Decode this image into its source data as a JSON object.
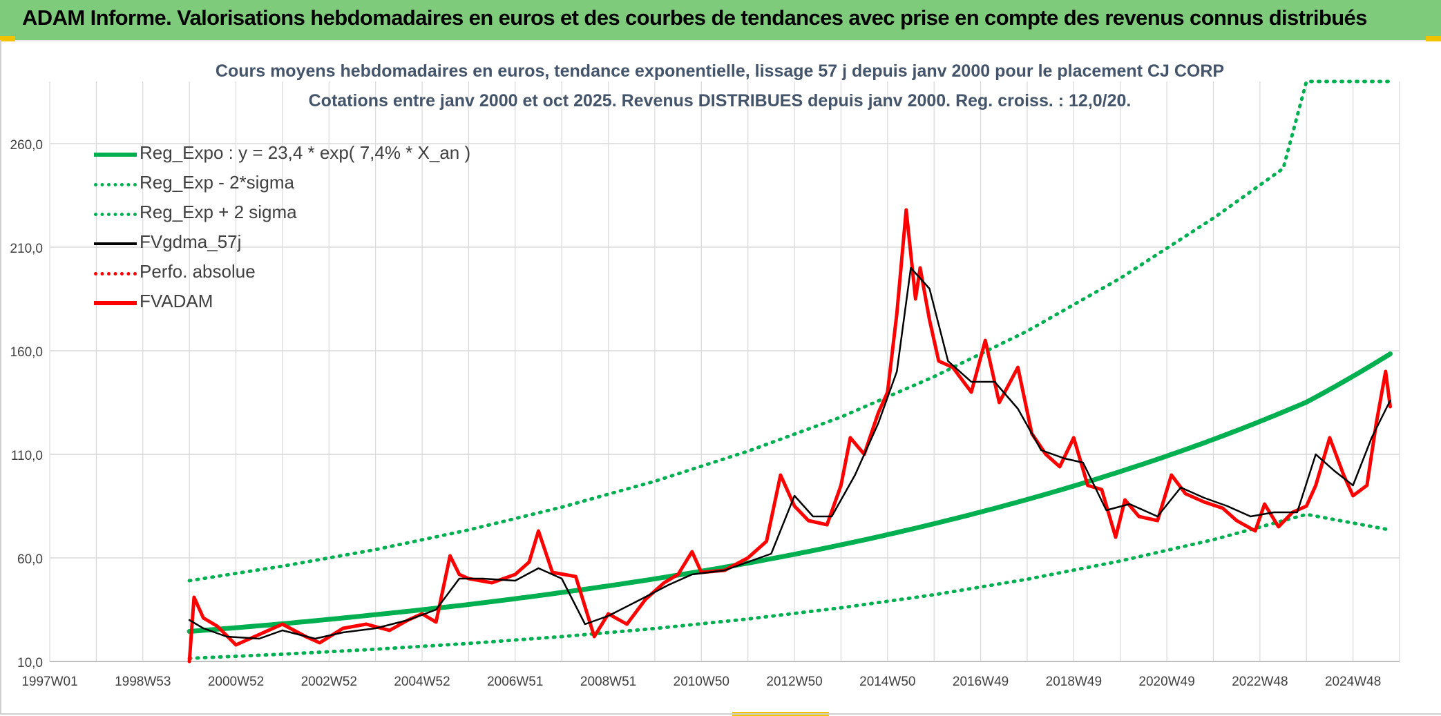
{
  "banner": {
    "title": "ADAM Informe. Valorisations hebdomadaires en euros et des courbes de tendances avec prise en compte des revenus connus distribués"
  },
  "colors": {
    "banner_bg": "#7fcb7c",
    "regression": "#00b050",
    "price": "#ff0000",
    "smoothed": "#000000",
    "grid": "#d9d9d9",
    "text": "#404040",
    "title_text": "#44546a"
  },
  "chart_data": {
    "type": "line",
    "title": "Cours moyens hebdomadaires en euros, tendance exponentielle, lissage 57 j depuis janv 2000 pour le placement CJ CORP",
    "subtitle": "Cotations entre janv 2000 et oct 2025. Revenus DISTRIBUES depuis janv 2000. Reg. croiss. : 12,0/20.",
    "xlabel": "",
    "ylabel": "",
    "x_ticks": [
      "1997W01",
      "1998W53",
      "2000W52",
      "2002W52",
      "2004W52",
      "2006W51",
      "2008W51",
      "2010W50",
      "2012W50",
      "2014W50",
      "2016W49",
      "2018W49",
      "2020W49",
      "2022W48",
      "2024W48"
    ],
    "x_tick_years": [
      1997.0,
      1999.0,
      2001.0,
      2003.0,
      2005.0,
      2007.0,
      2009.0,
      2011.0,
      2013.0,
      2015.0,
      2017.0,
      2019.0,
      2021.0,
      2023.0,
      2025.0
    ],
    "xlim": [
      1997.0,
      2026.0
    ],
    "y_ticks": [
      "10,0",
      "60,0",
      "110,0",
      "160,0",
      "210,0",
      "260,0"
    ],
    "ylim": [
      10,
      290
    ],
    "grid": true,
    "legend_position": "top-left",
    "legend": [
      {
        "label": "Reg_Expo : y = 23,4 * exp( 7,4% *  X_an )",
        "color": "#00b050",
        "style": "solid-thick"
      },
      {
        "label": "Reg_Exp - 2*sigma",
        "color": "#00b050",
        "style": "dotted"
      },
      {
        "label": "Reg_Exp + 2 sigma",
        "color": "#00b050",
        "style": "dotted"
      },
      {
        "label": "FVgdma_57j",
        "color": "#000000",
        "style": "solid"
      },
      {
        "label": "Perfo. absolue",
        "color": "#ff0000",
        "style": "dotted"
      },
      {
        "label": "FVADAM",
        "color": "#ff0000",
        "style": "solid-thick"
      }
    ],
    "series": [
      {
        "name": "Reg_Expo : y = 23,4 * exp( 7,4% *  X_an )",
        "x": [
          2000.0,
          2002.0,
          2004.0,
          2006.0,
          2008.0,
          2010.0,
          2012.0,
          2014.0,
          2016.0,
          2018.0,
          2020.0,
          2022.0,
          2024.0,
          2025.8
        ],
        "y": [
          24.5,
          28.2,
          32.6,
          37.5,
          43.3,
          49.9,
          57.5,
          66.3,
          76.5,
          88.2,
          101.7,
          117.2,
          135.2,
          158.5
        ]
      },
      {
        "name": "Reg_Exp - 2*sigma",
        "x": [
          2000.0,
          2002.0,
          2004.0,
          2006.0,
          2008.0,
          2010.0,
          2012.0,
          2014.0,
          2016.0,
          2018.0,
          2020.0,
          2022.0,
          2024.0,
          2025.8
        ],
        "y": [
          11.5,
          13.5,
          15.9,
          18.7,
          22.0,
          25.9,
          30.5,
          35.9,
          42.2,
          49.7,
          58.5,
          68.8,
          81.0,
          73.5
        ]
      },
      {
        "name": "Reg_Exp + 2 sigma",
        "x": [
          2000.0,
          2002.0,
          2004.0,
          2006.0,
          2008.0,
          2010.0,
          2012.0,
          2014.0,
          2016.0,
          2018.0,
          2020.0,
          2022.0,
          2023.5,
          2024.0,
          2025.8
        ],
        "y": [
          49.0,
          56.0,
          64.0,
          73.5,
          84.5,
          97.0,
          111.5,
          128.0,
          147.5,
          169.5,
          195.0,
          224.0,
          248.0,
          290.0,
          290.0
        ]
      },
      {
        "name": "FVgdma_57j",
        "x": [
          2000.0,
          2000.3,
          2000.8,
          2001.5,
          2002.0,
          2002.7,
          2003.3,
          2004.0,
          2004.7,
          2005.3,
          2005.8,
          2006.3,
          2007.0,
          2007.5,
          2008.0,
          2008.5,
          2009.0,
          2009.7,
          2010.3,
          2010.8,
          2011.5,
          2012.0,
          2012.5,
          2013.0,
          2013.4,
          2013.8,
          2014.3,
          2014.8,
          2015.2,
          2015.5,
          2015.9,
          2016.3,
          2016.8,
          2017.3,
          2017.8,
          2018.3,
          2018.8,
          2019.2,
          2019.7,
          2020.2,
          2020.8,
          2021.3,
          2021.8,
          2022.3,
          2022.8,
          2023.3,
          2023.8,
          2024.2,
          2024.6,
          2025.0,
          2025.4,
          2025.8
        ],
        "y": [
          30,
          26,
          22,
          21,
          25,
          21,
          24,
          26,
          30,
          35,
          50,
          50,
          49,
          55,
          50,
          28,
          32,
          40,
          47,
          52,
          54,
          58,
          62,
          90,
          80,
          80,
          100,
          125,
          150,
          200,
          190,
          155,
          145,
          145,
          132,
          112,
          108,
          106,
          83,
          86,
          80,
          94,
          89,
          85,
          80,
          82,
          82,
          110,
          102,
          95,
          118,
          136
        ]
      },
      {
        "name": "FVADAM",
        "x": [
          2000.0,
          2000.1,
          2000.3,
          2000.6,
          2001.0,
          2001.5,
          2002.0,
          2002.5,
          2002.8,
          2003.3,
          2003.8,
          2004.3,
          2004.7,
          2005.0,
          2005.3,
          2005.6,
          2005.8,
          2006.0,
          2006.5,
          2007.0,
          2007.3,
          2007.5,
          2007.8,
          2008.3,
          2008.7,
          2009.0,
          2009.4,
          2009.8,
          2010.2,
          2010.5,
          2010.8,
          2011.0,
          2011.5,
          2012.0,
          2012.4,
          2012.7,
          2013.0,
          2013.3,
          2013.7,
          2014.0,
          2014.2,
          2014.5,
          2014.8,
          2015.0,
          2015.2,
          2015.4,
          2015.6,
          2015.7,
          2015.9,
          2016.1,
          2016.4,
          2016.8,
          2017.1,
          2017.4,
          2017.8,
          2018.1,
          2018.4,
          2018.7,
          2019.0,
          2019.3,
          2019.6,
          2019.9,
          2020.1,
          2020.4,
          2020.8,
          2021.1,
          2021.4,
          2021.8,
          2022.2,
          2022.5,
          2022.9,
          2023.1,
          2023.4,
          2023.7,
          2024.0,
          2024.2,
          2024.5,
          2024.8,
          2025.0,
          2025.3,
          2025.5,
          2025.7,
          2025.8
        ],
        "y": [
          10,
          41,
          31,
          27,
          18,
          23,
          28,
          22,
          19,
          26,
          28,
          25,
          30,
          33,
          29,
          61,
          52,
          50,
          48,
          52,
          58,
          73,
          53,
          51,
          22,
          33,
          28,
          40,
          48,
          52,
          63,
          53,
          54,
          60,
          68,
          100,
          85,
          78,
          76,
          95,
          118,
          110,
          130,
          140,
          178,
          228,
          185,
          200,
          175,
          155,
          152,
          140,
          165,
          135,
          152,
          120,
          110,
          104,
          118,
          95,
          93,
          70,
          88,
          80,
          78,
          100,
          91,
          87,
          84,
          78,
          73,
          86,
          75,
          82,
          85,
          95,
          118,
          100,
          90,
          95,
          125,
          150,
          133
        ]
      }
    ]
  }
}
